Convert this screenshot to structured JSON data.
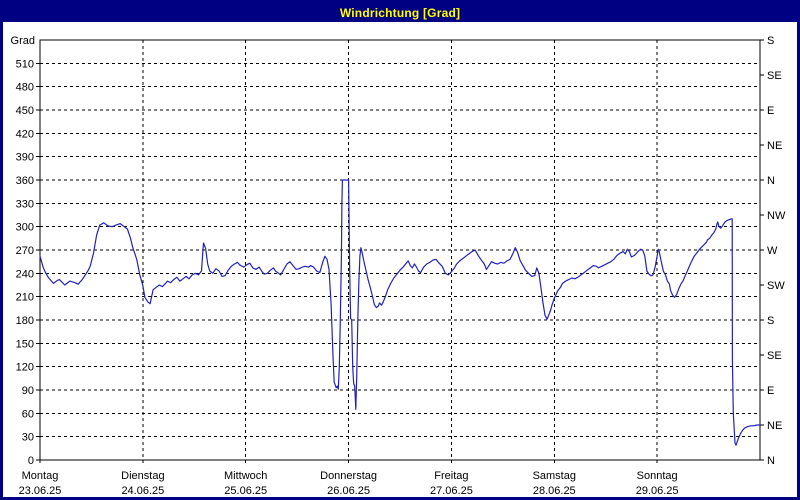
{
  "window": {
    "title": "Windrichtung [Grad]"
  },
  "colors": {
    "titlebar_bg": "#000082",
    "titlebar_text": "#ffff00",
    "background": "#ffffff",
    "axis": "#000000",
    "grid": "#000000",
    "text": "#000000",
    "line": "#2222bb"
  },
  "chart_data": {
    "type": "line",
    "title": "Windrichtung [Grad]",
    "grid": {
      "style": "dashed",
      "h_step_deg": 30,
      "v_step_days": 1
    },
    "y_axis": {
      "unit_label": "Grad",
      "min": 0,
      "max": 540,
      "tick_step": 30,
      "tick_labels": [
        0,
        30,
        60,
        90,
        120,
        150,
        180,
        210,
        240,
        270,
        300,
        330,
        360,
        390,
        420,
        450,
        480,
        510
      ]
    },
    "right_axis": {
      "tick_step_deg": 45,
      "labels_bottom_to_top": [
        "N",
        "NE",
        "E",
        "SE",
        "S",
        "SW",
        "W",
        "NW",
        "N",
        "NE",
        "E",
        "SE",
        "S"
      ]
    },
    "x_axis": {
      "range_days": [
        0,
        7
      ],
      "days": [
        {
          "name": "Montag",
          "date": "23.06.25"
        },
        {
          "name": "Dienstag",
          "date": "24.06.25"
        },
        {
          "name": "Mittwoch",
          "date": "25.06.25"
        },
        {
          "name": "Donnerstag",
          "date": "26.06.25"
        },
        {
          "name": "Freitag",
          "date": "27.06.25"
        },
        {
          "name": "Samstag",
          "date": "28.06.25"
        },
        {
          "name": "Sonntag",
          "date": "29.06.25"
        }
      ]
    },
    "series": [
      {
        "name": "Windrichtung",
        "color": "#2222bb",
        "points": [
          [
            0,
            262
          ],
          [
            0.03,
            248
          ],
          [
            0.05,
            242
          ],
          [
            0.08,
            235
          ],
          [
            0.13,
            227
          ],
          [
            0.17,
            231
          ],
          [
            0.19,
            232
          ],
          [
            0.24,
            225
          ],
          [
            0.29,
            230
          ],
          [
            0.34,
            228
          ],
          [
            0.37,
            226
          ],
          [
            0.41,
            232
          ],
          [
            0.44,
            238
          ],
          [
            0.47,
            244
          ],
          [
            0.49,
            250
          ],
          [
            0.52,
            266
          ],
          [
            0.55,
            289
          ],
          [
            0.58,
            302
          ],
          [
            0.62,
            305
          ],
          [
            0.66,
            301
          ],
          [
            0.7,
            300
          ],
          [
            0.74,
            302
          ],
          [
            0.78,
            304
          ],
          [
            0.82,
            300
          ],
          [
            0.85,
            297
          ],
          [
            0.88,
            285
          ],
          [
            0.9,
            274
          ],
          [
            0.94,
            258
          ],
          [
            0.97,
            238
          ],
          [
            1.0,
            224
          ],
          [
            1.02,
            209
          ],
          [
            1.05,
            203
          ],
          [
            1.07,
            201
          ],
          [
            1.1,
            219
          ],
          [
            1.13,
            222
          ],
          [
            1.16,
            225
          ],
          [
            1.19,
            223
          ],
          [
            1.22,
            227
          ],
          [
            1.24,
            230
          ],
          [
            1.27,
            228
          ],
          [
            1.3,
            232
          ],
          [
            1.33,
            235
          ],
          [
            1.36,
            230
          ],
          [
            1.39,
            233
          ],
          [
            1.42,
            236
          ],
          [
            1.45,
            233
          ],
          [
            1.48,
            238
          ],
          [
            1.51,
            240
          ],
          [
            1.54,
            238
          ],
          [
            1.57,
            243
          ],
          [
            1.58,
            262
          ],
          [
            1.59,
            279
          ],
          [
            1.61,
            272
          ],
          [
            1.63,
            252
          ],
          [
            1.65,
            243
          ],
          [
            1.68,
            240
          ],
          [
            1.71,
            246
          ],
          [
            1.74,
            243
          ],
          [
            1.77,
            236
          ],
          [
            1.8,
            237
          ],
          [
            1.83,
            244
          ],
          [
            1.86,
            249
          ],
          [
            1.89,
            252
          ],
          [
            1.92,
            254
          ],
          [
            1.94,
            251
          ],
          [
            1.98,
            248
          ],
          [
            2.01,
            251
          ],
          [
            2.04,
            253
          ],
          [
            2.07,
            247
          ],
          [
            2.1,
            245
          ],
          [
            2.13,
            248
          ],
          [
            2.16,
            242
          ],
          [
            2.18,
            239
          ],
          [
            2.21,
            240
          ],
          [
            2.24,
            244
          ],
          [
            2.27,
            247
          ],
          [
            2.29,
            243
          ],
          [
            2.32,
            240
          ],
          [
            2.34,
            238
          ],
          [
            2.37,
            245
          ],
          [
            2.4,
            252
          ],
          [
            2.43,
            255
          ],
          [
            2.46,
            250
          ],
          [
            2.49,
            245
          ],
          [
            2.52,
            246
          ],
          [
            2.55,
            248
          ],
          [
            2.58,
            249
          ],
          [
            2.61,
            248
          ],
          [
            2.63,
            250
          ],
          [
            2.66,
            248
          ],
          [
            2.69,
            243
          ],
          [
            2.72,
            241
          ],
          [
            2.75,
            255
          ],
          [
            2.77,
            262
          ],
          [
            2.79,
            258
          ],
          [
            2.81,
            245
          ],
          [
            2.83,
            200
          ],
          [
            2.85,
            130
          ],
          [
            2.86,
            100
          ],
          [
            2.88,
            93
          ],
          [
            2.89,
            95
          ],
          [
            2.9,
            91
          ],
          [
            2.91,
            120
          ],
          [
            2.92,
            180
          ],
          [
            2.93,
            260
          ],
          [
            2.935,
            330
          ],
          [
            2.94,
            360
          ],
          [
            3.0,
            360
          ],
          [
            3.01,
            250
          ],
          [
            3.02,
            182
          ],
          [
            3.03,
            180
          ],
          [
            3.04,
            120
          ],
          [
            3.05,
            98
          ],
          [
            3.06,
            95
          ],
          [
            3.07,
            65
          ],
          [
            3.08,
            112
          ],
          [
            3.09,
            180
          ],
          [
            3.1,
            230
          ],
          [
            3.11,
            262
          ],
          [
            3.12,
            273
          ],
          [
            3.13,
            268
          ],
          [
            3.15,
            255
          ],
          [
            3.17,
            243
          ],
          [
            3.19,
            232
          ],
          [
            3.21,
            222
          ],
          [
            3.23,
            212
          ],
          [
            3.25,
            200
          ],
          [
            3.27,
            196
          ],
          [
            3.29,
            198
          ],
          [
            3.3,
            202
          ],
          [
            3.32,
            199
          ],
          [
            3.34,
            204
          ],
          [
            3.36,
            211
          ],
          [
            3.38,
            219
          ],
          [
            3.41,
            227
          ],
          [
            3.44,
            234
          ],
          [
            3.47,
            239
          ],
          [
            3.5,
            244
          ],
          [
            3.53,
            248
          ],
          [
            3.56,
            253
          ],
          [
            3.58,
            256
          ],
          [
            3.6,
            250
          ],
          [
            3.62,
            247
          ],
          [
            3.64,
            252
          ],
          [
            3.66,
            248
          ],
          [
            3.68,
            243
          ],
          [
            3.7,
            241
          ],
          [
            3.73,
            248
          ],
          [
            3.76,
            252
          ],
          [
            3.79,
            254
          ],
          [
            3.82,
            257
          ],
          [
            3.85,
            258
          ],
          [
            3.88,
            253
          ],
          [
            3.91,
            249
          ],
          [
            3.94,
            240
          ],
          [
            3.97,
            238
          ],
          [
            4.0,
            242
          ],
          [
            4.03,
            247
          ],
          [
            4.05,
            252
          ],
          [
            4.08,
            256
          ],
          [
            4.11,
            259
          ],
          [
            4.14,
            262
          ],
          [
            4.17,
            265
          ],
          [
            4.2,
            268
          ],
          [
            4.23,
            270
          ],
          [
            4.26,
            263
          ],
          [
            4.29,
            257
          ],
          [
            4.32,
            252
          ],
          [
            4.34,
            245
          ],
          [
            4.36,
            249
          ],
          [
            4.39,
            255
          ],
          [
            4.42,
            253
          ],
          [
            4.45,
            252
          ],
          [
            4.48,
            254
          ],
          [
            4.51,
            253
          ],
          [
            4.54,
            256
          ],
          [
            4.57,
            258
          ],
          [
            4.6,
            266
          ],
          [
            4.62,
            273
          ],
          [
            4.64,
            268
          ],
          [
            4.67,
            256
          ],
          [
            4.7,
            249
          ],
          [
            4.72,
            244
          ],
          [
            4.75,
            240
          ],
          [
            4.78,
            236
          ],
          [
            4.81,
            237
          ],
          [
            4.83,
            247
          ],
          [
            4.85,
            240
          ],
          [
            4.87,
            222
          ],
          [
            4.89,
            202
          ],
          [
            4.91,
            186
          ],
          [
            4.93,
            181
          ],
          [
            4.96,
            191
          ],
          [
            4.98,
            200
          ],
          [
            5.0,
            208
          ],
          [
            5.03,
            217
          ],
          [
            5.06,
            222
          ],
          [
            5.08,
            227
          ],
          [
            5.11,
            230
          ],
          [
            5.14,
            232
          ],
          [
            5.17,
            234
          ],
          [
            5.2,
            233
          ],
          [
            5.23,
            235
          ],
          [
            5.26,
            238
          ],
          [
            5.29,
            241
          ],
          [
            5.32,
            244
          ],
          [
            5.35,
            247
          ],
          [
            5.38,
            250
          ],
          [
            5.41,
            249
          ],
          [
            5.43,
            247
          ],
          [
            5.46,
            249
          ],
          [
            5.49,
            251
          ],
          [
            5.52,
            253
          ],
          [
            5.55,
            255
          ],
          [
            5.58,
            258
          ],
          [
            5.61,
            263
          ],
          [
            5.64,
            266
          ],
          [
            5.67,
            268
          ],
          [
            5.69,
            265
          ],
          [
            5.71,
            271
          ],
          [
            5.73,
            268
          ],
          [
            5.75,
            261
          ],
          [
            5.78,
            263
          ],
          [
            5.8,
            266
          ],
          [
            5.82,
            269
          ],
          [
            5.84,
            271
          ],
          [
            5.86,
            270
          ],
          [
            5.88,
            262
          ],
          [
            5.9,
            243
          ],
          [
            5.92,
            239
          ],
          [
            5.94,
            237
          ],
          [
            5.96,
            238
          ],
          [
            5.98,
            248
          ],
          [
            6.0,
            262
          ],
          [
            6.01,
            271
          ],
          [
            6.02,
            268
          ],
          [
            6.04,
            255
          ],
          [
            6.06,
            243
          ],
          [
            6.08,
            238
          ],
          [
            6.1,
            230
          ],
          [
            6.12,
            226
          ],
          [
            6.13,
            218
          ],
          [
            6.15,
            212
          ],
          [
            6.17,
            209
          ],
          [
            6.19,
            213
          ],
          [
            6.21,
            220
          ],
          [
            6.23,
            226
          ],
          [
            6.25,
            230
          ],
          [
            6.27,
            236
          ],
          [
            6.29,
            242
          ],
          [
            6.31,
            248
          ],
          [
            6.33,
            254
          ],
          [
            6.36,
            262
          ],
          [
            6.39,
            267
          ],
          [
            6.42,
            272
          ],
          [
            6.45,
            276
          ],
          [
            6.48,
            280
          ],
          [
            6.49,
            283
          ],
          [
            6.51,
            285
          ],
          [
            6.53,
            289
          ],
          [
            6.55,
            292
          ],
          [
            6.57,
            297
          ],
          [
            6.58,
            303
          ],
          [
            6.59,
            306
          ],
          [
            6.6,
            300
          ],
          [
            6.62,
            298
          ],
          [
            6.64,
            302
          ],
          [
            6.66,
            306
          ],
          [
            6.68,
            308
          ],
          [
            6.7,
            309
          ],
          [
            6.72,
            310
          ],
          [
            6.73,
            310
          ],
          [
            6.732,
            128
          ],
          [
            6.74,
            60
          ],
          [
            6.757,
            22
          ],
          [
            6.767,
            19
          ],
          [
            6.79,
            28
          ],
          [
            6.81,
            34
          ],
          [
            6.83,
            38
          ],
          [
            6.85,
            41
          ],
          [
            6.88,
            43
          ],
          [
            6.91,
            44
          ],
          [
            6.94,
            44
          ],
          [
            6.97,
            45
          ],
          [
            7.0,
            45
          ]
        ]
      }
    ]
  }
}
